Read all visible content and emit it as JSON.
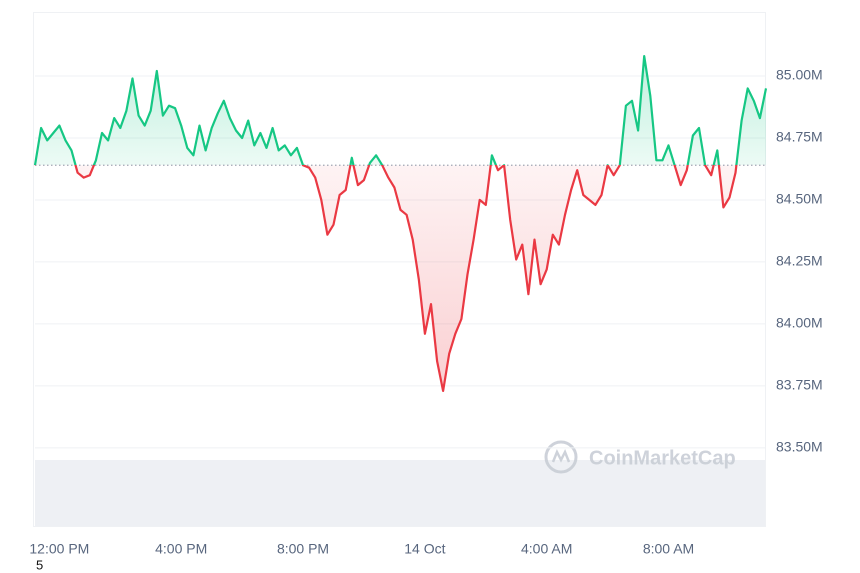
{
  "chart_data": {
    "type": "line",
    "categories": [
      null,
      null,
      null,
      null,
      "12:00 PM",
      null,
      null,
      null,
      null,
      null,
      null,
      null,
      null,
      null,
      null,
      null,
      null,
      null,
      null,
      null,
      null,
      null,
      null,
      null,
      "4:00 PM",
      null,
      null,
      null,
      null,
      null,
      null,
      null,
      null,
      null,
      null,
      null,
      null,
      null,
      null,
      null,
      null,
      null,
      null,
      null,
      "8:00 PM",
      null,
      null,
      null,
      null,
      null,
      null,
      null,
      null,
      null,
      null,
      null,
      null,
      null,
      null,
      null,
      null,
      null,
      null,
      null,
      "14 Oct",
      null,
      null,
      null,
      null,
      null,
      null,
      null,
      null,
      null,
      null,
      null,
      null,
      null,
      null,
      null,
      null,
      null,
      null,
      null,
      "4:00 AM",
      null,
      null,
      null,
      null,
      null,
      null,
      null,
      null,
      null,
      null,
      null,
      null,
      null,
      null,
      null,
      null,
      null,
      null,
      null,
      "8:00 AM",
      null,
      null,
      null,
      null,
      null,
      null,
      null,
      null,
      null,
      null,
      null,
      null,
      null,
      null,
      null,
      null
    ],
    "series": [
      {
        "values": [
          84.64,
          84.79,
          84.74,
          84.77,
          84.8,
          84.74,
          84.7,
          84.61,
          84.59,
          84.6,
          84.66,
          84.77,
          84.74,
          84.83,
          84.79,
          84.86,
          84.99,
          84.84,
          84.8,
          84.86,
          85.02,
          84.84,
          84.88,
          84.87,
          84.8,
          84.71,
          84.68,
          84.8,
          84.7,
          84.79,
          84.85,
          84.9,
          84.83,
          84.78,
          84.75,
          84.82,
          84.72,
          84.77,
          84.71,
          84.79,
          84.7,
          84.72,
          84.68,
          84.71,
          84.64,
          84.63,
          84.59,
          84.5,
          84.36,
          84.4,
          84.52,
          84.54,
          84.67,
          84.56,
          84.58,
          84.65,
          84.68,
          84.64,
          84.59,
          84.55,
          84.46,
          84.44,
          84.34,
          84.18,
          83.96,
          84.08,
          83.85,
          83.73,
          83.88,
          83.96,
          84.02,
          84.2,
          84.34,
          84.5,
          84.48,
          84.68,
          84.62,
          84.64,
          84.42,
          84.26,
          84.32,
          84.12,
          84.34,
          84.16,
          84.22,
          84.36,
          84.32,
          84.44,
          84.54,
          84.62,
          84.52,
          84.5,
          84.48,
          84.52,
          84.64,
          84.6,
          84.64,
          84.88,
          84.9,
          84.78,
          85.08,
          84.92,
          84.66,
          84.66,
          84.72,
          84.64,
          84.56,
          84.62,
          84.76,
          84.79,
          84.64,
          84.6,
          84.7,
          84.47,
          84.51,
          84.61,
          84.82,
          84.95,
          84.9,
          84.83,
          84.95
        ]
      }
    ],
    "baseline": 84.64,
    "up_color": "#16c784",
    "down_color": "#ea3943",
    "ylim": [
      83.185,
      85.258
    ],
    "yticks": [
      {
        "value": 83.5,
        "label": "83.50M"
      },
      {
        "value": 83.75,
        "label": "83.75M"
      },
      {
        "value": 84,
        "label": "84.00M"
      },
      {
        "value": 84.25,
        "label": "84.25M"
      },
      {
        "value": 84.5,
        "label": "84.50M"
      },
      {
        "value": 84.75,
        "label": "84.75M"
      },
      {
        "value": 85,
        "label": "85.00M"
      }
    ],
    "grid": true,
    "watermark": "CoinMarketCap",
    "footnote": "5"
  }
}
